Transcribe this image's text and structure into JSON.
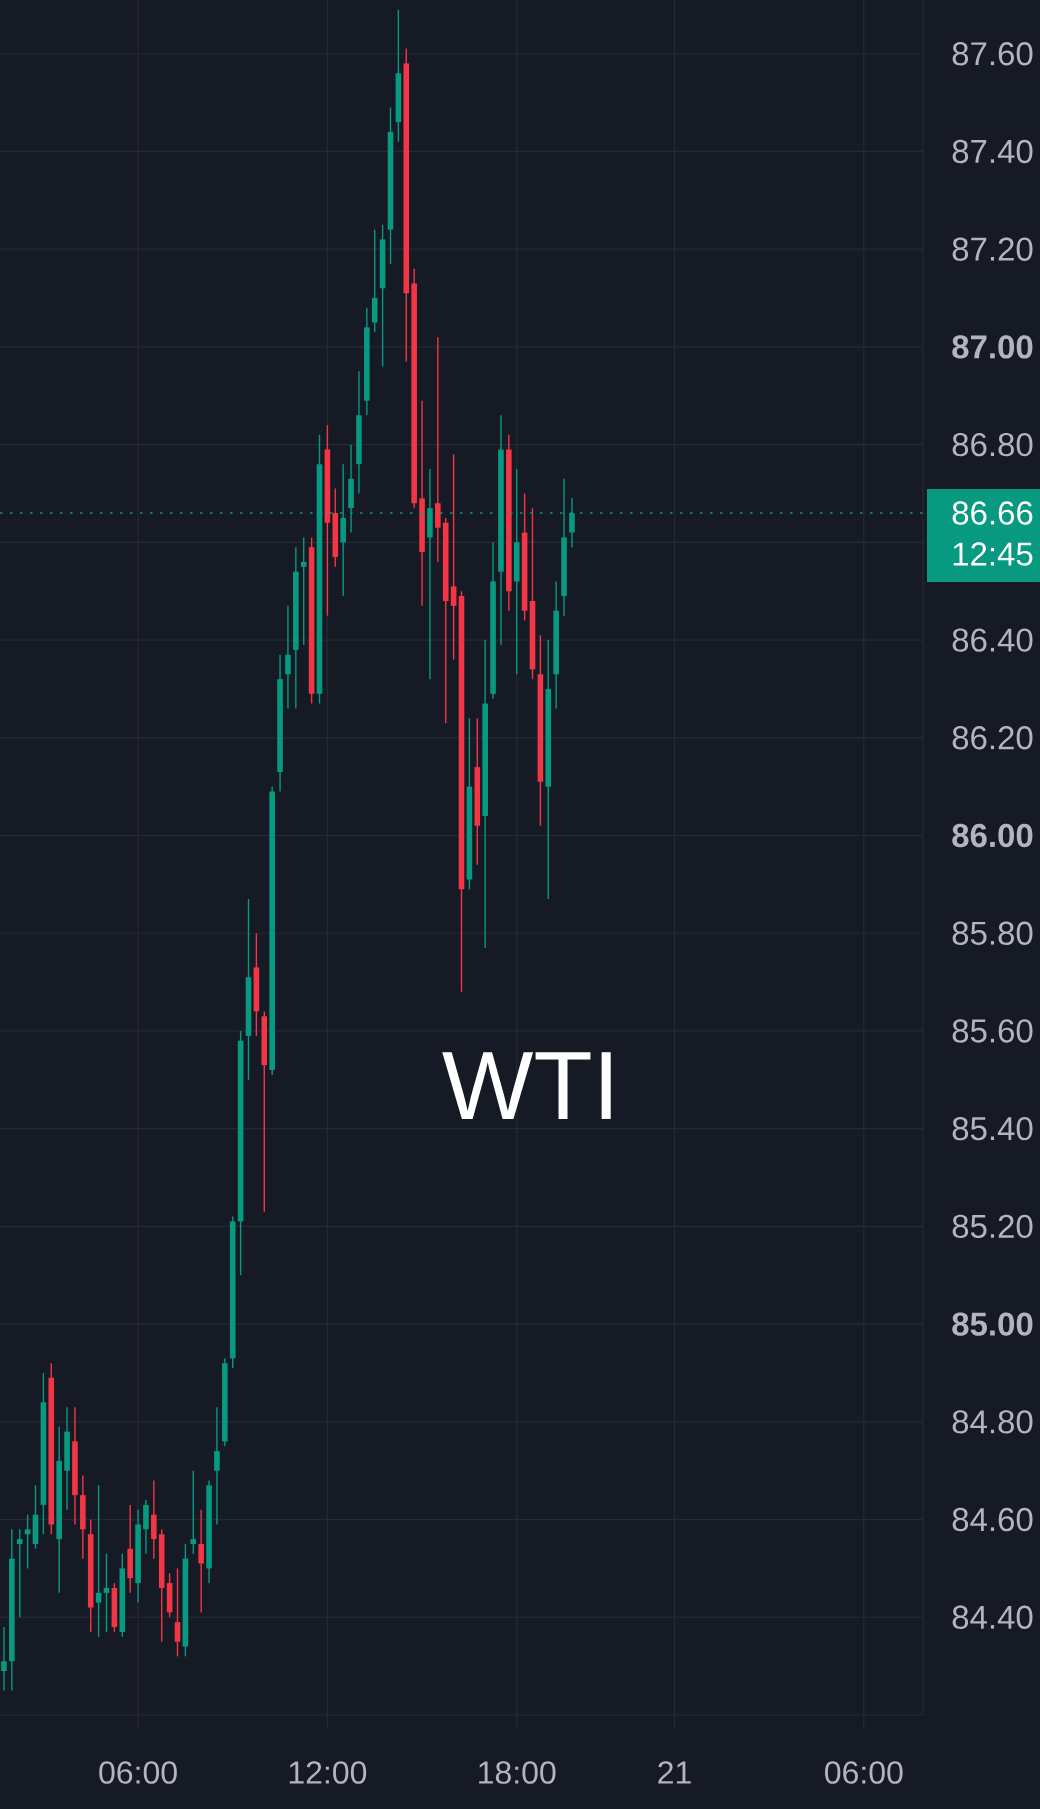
{
  "chart_data": {
    "type": "candlestick",
    "title": "WTI",
    "categories": [
      null,
      null,
      null,
      null,
      null,
      null,
      null,
      null,
      null,
      null,
      null,
      null,
      null,
      null,
      null,
      null,
      null,
      "06:00",
      null,
      null,
      null,
      null,
      null,
      null,
      null,
      null,
      null,
      null,
      null,
      null,
      null,
      null,
      null,
      null,
      null,
      null,
      null,
      null,
      null,
      null,
      null,
      "12:00",
      null,
      null,
      null,
      null,
      null,
      null,
      null,
      null,
      null,
      null,
      null,
      null,
      null,
      null,
      null,
      null,
      null,
      null,
      null,
      null,
      null,
      null,
      null,
      "18:00",
      null,
      null,
      null,
      null,
      null,
      null,
      null,
      null,
      null,
      null,
      null,
      null,
      null,
      null,
      null,
      null,
      null,
      null,
      null,
      "21",
      null,
      null,
      null,
      null,
      null,
      null,
      null,
      null,
      null,
      null,
      null,
      null,
      null,
      null,
      null,
      null,
      null,
      null,
      null,
      null,
      null,
      null,
      null,
      "06:00",
      null,
      null,
      null,
      null,
      null,
      null,
      null
    ],
    "ohlc": [
      [
        84.29,
        84.38,
        84.25,
        84.31
      ],
      [
        84.31,
        84.58,
        84.25,
        84.52
      ],
      [
        84.55,
        84.58,
        84.4,
        84.56
      ],
      [
        84.57,
        84.61,
        84.5,
        84.58
      ],
      [
        84.55,
        84.67,
        84.54,
        84.61
      ],
      [
        84.63,
        84.9,
        84.57,
        84.84
      ],
      [
        84.89,
        84.92,
        84.57,
        84.59
      ],
      [
        84.56,
        84.79,
        84.45,
        84.72
      ],
      [
        84.7,
        84.83,
        84.62,
        84.78
      ],
      [
        84.76,
        84.83,
        84.59,
        84.65
      ],
      [
        84.65,
        84.69,
        84.52,
        84.58
      ],
      [
        84.57,
        84.6,
        84.37,
        84.42
      ],
      [
        84.43,
        84.67,
        84.36,
        84.45
      ],
      [
        84.45,
        84.53,
        84.37,
        84.46
      ],
      [
        84.46,
        84.47,
        84.37,
        84.38
      ],
      [
        84.37,
        84.53,
        84.36,
        84.5
      ],
      [
        84.54,
        84.63,
        84.45,
        84.48
      ],
      [
        84.47,
        84.62,
        84.43,
        84.59
      ],
      [
        84.58,
        84.64,
        84.53,
        84.63
      ],
      [
        84.61,
        84.68,
        84.52,
        84.56
      ],
      [
        84.57,
        84.58,
        84.35,
        84.46
      ],
      [
        84.47,
        84.49,
        84.4,
        84.41
      ],
      [
        84.39,
        84.5,
        84.32,
        84.35
      ],
      [
        84.34,
        84.55,
        84.32,
        84.52
      ],
      [
        84.55,
        84.7,
        84.53,
        84.56
      ],
      [
        84.55,
        84.62,
        84.41,
        84.51
      ],
      [
        84.5,
        84.68,
        84.47,
        84.67
      ],
      [
        84.7,
        84.83,
        84.59,
        84.74
      ],
      [
        84.76,
        84.93,
        84.75,
        84.92
      ],
      [
        84.93,
        85.22,
        84.91,
        85.21
      ],
      [
        85.21,
        85.6,
        85.1,
        85.58
      ],
      [
        85.59,
        85.87,
        85.5,
        85.71
      ],
      [
        85.73,
        85.8,
        85.59,
        85.64
      ],
      [
        85.63,
        85.64,
        85.23,
        85.53
      ],
      [
        85.52,
        86.1,
        85.51,
        86.09
      ],
      [
        86.13,
        86.37,
        86.09,
        86.32
      ],
      [
        86.33,
        86.47,
        86.26,
        86.37
      ],
      [
        86.38,
        86.59,
        86.26,
        86.54
      ],
      [
        86.55,
        86.61,
        86.39,
        86.56
      ],
      [
        86.59,
        86.61,
        86.27,
        86.29
      ],
      [
        86.29,
        86.82,
        86.27,
        86.76
      ],
      [
        86.79,
        86.84,
        86.45,
        86.64
      ],
      [
        86.66,
        86.71,
        86.55,
        86.57
      ],
      [
        86.6,
        86.76,
        86.49,
        86.65
      ],
      [
        86.67,
        86.8,
        86.62,
        86.73
      ],
      [
        86.76,
        86.95,
        86.7,
        86.86
      ],
      [
        86.89,
        87.08,
        86.86,
        87.04
      ],
      [
        87.05,
        87.24,
        87.03,
        87.1
      ],
      [
        87.12,
        87.25,
        86.96,
        87.22
      ],
      [
        87.24,
        87.49,
        87.17,
        87.44
      ],
      [
        87.46,
        87.69,
        87.42,
        87.56
      ],
      [
        87.58,
        87.61,
        86.97,
        87.11
      ],
      [
        87.13,
        87.16,
        86.67,
        86.68
      ],
      [
        86.69,
        86.89,
        86.47,
        86.58
      ],
      [
        86.61,
        86.75,
        86.32,
        86.67
      ],
      [
        86.68,
        87.02,
        86.56,
        86.63
      ],
      [
        86.64,
        86.65,
        86.23,
        86.48
      ],
      [
        86.51,
        86.78,
        86.36,
        86.47
      ],
      [
        86.49,
        86.5,
        85.68,
        85.89
      ],
      [
        85.91,
        86.24,
        85.89,
        86.1
      ],
      [
        86.14,
        86.24,
        85.94,
        86.02
      ],
      [
        86.04,
        86.4,
        85.77,
        86.27
      ],
      [
        86.29,
        86.6,
        86.28,
        86.52
      ],
      [
        86.54,
        86.86,
        86.39,
        86.79
      ],
      [
        86.79,
        86.82,
        86.46,
        86.5
      ],
      [
        86.52,
        86.75,
        86.33,
        86.6
      ],
      [
        86.62,
        86.7,
        86.44,
        86.46
      ],
      [
        86.48,
        86.67,
        86.32,
        86.34
      ],
      [
        86.33,
        86.41,
        86.02,
        86.11
      ],
      [
        86.1,
        86.4,
        85.87,
        86.3
      ],
      [
        86.33,
        86.52,
        86.26,
        86.46
      ],
      [
        86.49,
        86.73,
        86.45,
        86.61
      ],
      [
        86.62,
        86.69,
        86.59,
        86.66
      ],
      null,
      null,
      null,
      null,
      null,
      null,
      null,
      null,
      null,
      null,
      null,
      null,
      null,
      null,
      null,
      null,
      null,
      null,
      null,
      null,
      null,
      null,
      null,
      null,
      null,
      null,
      null,
      null,
      null,
      null,
      null,
      null,
      null,
      null,
      null,
      null,
      null,
      null,
      null,
      null,
      null,
      null,
      null,
      null
    ],
    "colors": [
      "#089981",
      "#089981",
      "#089981",
      "#089981",
      "#089981",
      "#089981",
      "#f23645",
      "#089981",
      "#089981",
      "#f23645",
      "#f23645",
      "#f23645",
      "#089981",
      "#089981",
      "#f23645",
      "#089981",
      "#f23645",
      "#089981",
      "#089981",
      "#f23645",
      "#f23645",
      "#f23645",
      "#f23645",
      "#089981",
      "#089981",
      "#f23645",
      "#089981",
      "#089981",
      "#089981",
      "#089981",
      "#089981",
      "#089981",
      "#f23645",
      "#f23645",
      "#089981",
      "#089981",
      "#089981",
      "#089981",
      "#089981",
      "#f23645",
      "#089981",
      "#f23645",
      "#f23645",
      "#089981",
      "#089981",
      "#089981",
      "#089981",
      "#089981",
      "#089981",
      "#089981",
      "#089981",
      "#f23645",
      "#f23645",
      "#f23645",
      "#089981",
      "#f23645",
      "#f23645",
      "#f23645",
      "#f23645",
      "#089981",
      "#f23645",
      "#089981",
      "#089981",
      "#089981",
      "#f23645",
      "#089981",
      "#f23645",
      "#f23645",
      "#f23645",
      "#089981",
      "#089981",
      "#089981",
      "#089981",
      null,
      null,
      null,
      null,
      null,
      null,
      null,
      null,
      null,
      null,
      null,
      null,
      null,
      null,
      null,
      null,
      null,
      null,
      null,
      null,
      null,
      null,
      null,
      null,
      null,
      null,
      null,
      null,
      null,
      null,
      null,
      null,
      null,
      null,
      null,
      null,
      null,
      null,
      null,
      null,
      null,
      null,
      null,
      null
    ],
    "ylim": [
      84.2,
      87.71
    ],
    "yticks": [
      {
        "value": 84.4,
        "label": "84.40"
      },
      {
        "value": 84.6,
        "label": "84.60"
      },
      {
        "value": 84.8,
        "label": "84.80"
      },
      {
        "value": 85.0,
        "label": "85.00"
      },
      {
        "value": 85.2,
        "label": "85.20"
      },
      {
        "value": 85.4,
        "label": "85.40"
      },
      {
        "value": 85.6,
        "label": "85.60"
      },
      {
        "value": 85.8,
        "label": "85.80"
      },
      {
        "value": 86.0,
        "label": "86.00"
      },
      {
        "value": 86.2,
        "label": "86.20"
      },
      {
        "value": 86.4,
        "label": "86.40"
      },
      {
        "value": 86.6,
        "label": null
      },
      {
        "value": 86.8,
        "label": "86.80"
      },
      {
        "value": 87.0,
        "label": "87.00"
      },
      {
        "value": 87.2,
        "label": "87.20"
      },
      {
        "value": 87.4,
        "label": "87.40"
      },
      {
        "value": 87.6,
        "label": "87.60"
      }
    ],
    "grid": true,
    "ref_lines": [
      {
        "axis": "y",
        "value": 86.66,
        "label": "86.66",
        "color": "#089981",
        "line_style": "dotted"
      }
    ],
    "annotations": [
      "12:45"
    ]
  }
}
